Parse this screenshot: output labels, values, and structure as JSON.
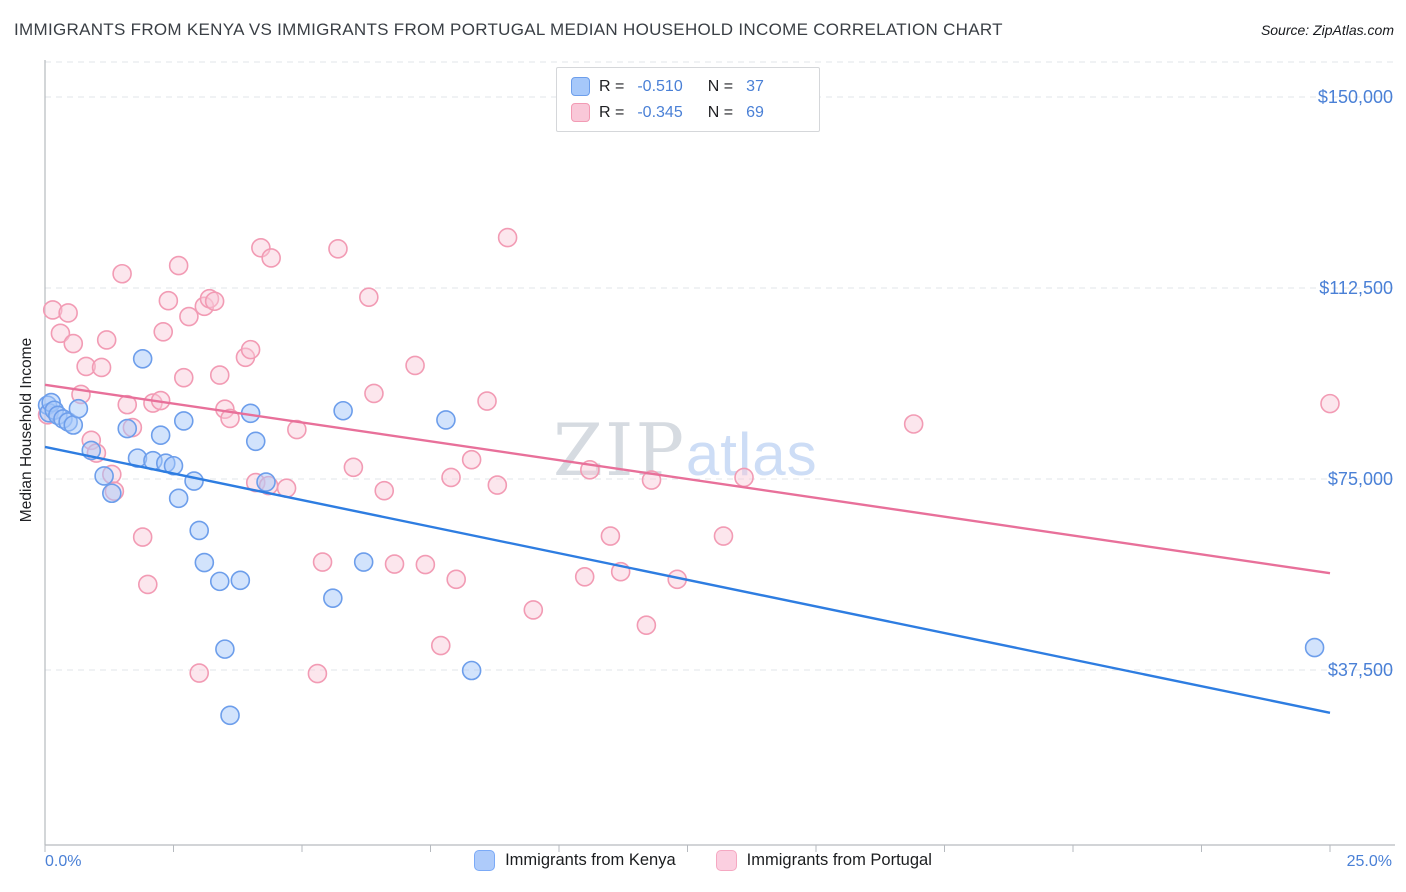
{
  "header": {
    "source": "Source: ZipAtlas.com"
  },
  "legend_box": {
    "rows": [
      {
        "series": "kenya",
        "r_label": "R =",
        "r_value": "-0.510",
        "n_label": "N =",
        "n_value": "37"
      },
      {
        "series": "portugal",
        "r_label": "R =",
        "r_value": "-0.345",
        "n_label": "N =",
        "n_value": "69"
      }
    ]
  },
  "watermark": {
    "zip": "ZIP",
    "atlas": "atlas"
  },
  "chart_data": {
    "type": "scatter",
    "title": "IMMIGRANTS FROM KENYA VS IMMIGRANTS FROM PORTUGAL MEDIAN HOUSEHOLD INCOME CORRELATION CHART",
    "xlabel": "",
    "ylabel": "Median Household Income",
    "grid": "dashed-horizontal",
    "legend_position": "top-center",
    "x_axis": {
      "min_pct": 0,
      "max_pct": 25,
      "tick_step_pct": 2.5,
      "min_label": "0.0%",
      "max_label": "25.0%"
    },
    "y_axis": {
      "ticks": [
        {
          "value": 150000,
          "label": "$150,000"
        },
        {
          "value": 112500,
          "label": "$112,500"
        },
        {
          "value": 75000,
          "label": "$75,000"
        },
        {
          "value": 37500,
          "label": "$37,500"
        }
      ],
      "tick_color": "#4a80d6"
    },
    "series": [
      {
        "name": "Immigrants from Kenya",
        "r": -0.51,
        "n": 37,
        "fill": "#a6c8fa",
        "stroke": "#6d9eeb",
        "line_color": "#2e7de1",
        "fill_opacity": 0.5,
        "trend": {
          "x0_pct": 0,
          "y0": 81300,
          "x1_pct": 25,
          "y1": 29100
        },
        "points_pct_income": [
          [
            0.05,
            89500
          ],
          [
            0.08,
            88000
          ],
          [
            0.12,
            90000
          ],
          [
            0.18,
            88500
          ],
          [
            0.25,
            87500
          ],
          [
            0.35,
            86800
          ],
          [
            0.45,
            86200
          ],
          [
            0.55,
            85600
          ],
          [
            0.65,
            88800
          ],
          [
            0.9,
            80600
          ],
          [
            1.15,
            75600
          ],
          [
            1.3,
            72200
          ],
          [
            1.6,
            84900
          ],
          [
            1.8,
            79100
          ],
          [
            1.9,
            98600
          ],
          [
            2.1,
            78600
          ],
          [
            2.25,
            83600
          ],
          [
            2.35,
            78100
          ],
          [
            2.5,
            77600
          ],
          [
            2.6,
            71200
          ],
          [
            2.7,
            86400
          ],
          [
            2.9,
            74600
          ],
          [
            3.0,
            64900
          ],
          [
            3.1,
            58600
          ],
          [
            3.4,
            54900
          ],
          [
            3.5,
            41600
          ],
          [
            3.6,
            28600
          ],
          [
            3.8,
            55100
          ],
          [
            4.0,
            87900
          ],
          [
            4.1,
            82400
          ],
          [
            4.3,
            74400
          ],
          [
            5.6,
            51600
          ],
          [
            5.8,
            88400
          ],
          [
            6.2,
            58700
          ],
          [
            7.8,
            86600
          ],
          [
            8.3,
            37400
          ],
          [
            24.7,
            41900
          ]
        ]
      },
      {
        "name": "Immigrants from Portugal",
        "r": -0.345,
        "n": 69,
        "fill": "#f9c8d8",
        "stroke": "#f29bb4",
        "line_color": "#e8709a",
        "fill_opacity": 0.45,
        "trend": {
          "x0_pct": 0,
          "y0": 93500,
          "x1_pct": 25,
          "y1": 56500
        },
        "points_pct_income": [
          [
            0.05,
            87600
          ],
          [
            0.15,
            108200
          ],
          [
            0.3,
            103600
          ],
          [
            0.45,
            107600
          ],
          [
            0.55,
            101600
          ],
          [
            0.7,
            91600
          ],
          [
            0.8,
            97100
          ],
          [
            0.9,
            82600
          ],
          [
            1.0,
            80100
          ],
          [
            1.1,
            96900
          ],
          [
            1.2,
            102300
          ],
          [
            1.3,
            75900
          ],
          [
            1.35,
            72600
          ],
          [
            1.5,
            115300
          ],
          [
            1.6,
            89600
          ],
          [
            1.7,
            85100
          ],
          [
            1.9,
            63600
          ],
          [
            2.0,
            54300
          ],
          [
            2.1,
            89900
          ],
          [
            2.25,
            90400
          ],
          [
            2.3,
            103900
          ],
          [
            2.4,
            110000
          ],
          [
            2.6,
            116900
          ],
          [
            2.7,
            94900
          ],
          [
            2.8,
            106900
          ],
          [
            3.0,
            36900
          ],
          [
            3.1,
            108900
          ],
          [
            3.2,
            110400
          ],
          [
            3.3,
            109900
          ],
          [
            3.4,
            95400
          ],
          [
            3.5,
            88700
          ],
          [
            3.6,
            86900
          ],
          [
            3.9,
            98900
          ],
          [
            4.0,
            100400
          ],
          [
            4.1,
            74300
          ],
          [
            4.2,
            120400
          ],
          [
            4.35,
            73700
          ],
          [
            4.4,
            118400
          ],
          [
            4.7,
            73200
          ],
          [
            4.9,
            84700
          ],
          [
            5.3,
            36800
          ],
          [
            5.4,
            58700
          ],
          [
            5.7,
            120200
          ],
          [
            6.0,
            77300
          ],
          [
            6.3,
            110700
          ],
          [
            6.4,
            91800
          ],
          [
            6.6,
            72700
          ],
          [
            6.8,
            58300
          ],
          [
            7.2,
            97300
          ],
          [
            7.4,
            58200
          ],
          [
            7.7,
            42300
          ],
          [
            7.9,
            75300
          ],
          [
            8.0,
            55300
          ],
          [
            8.3,
            78800
          ],
          [
            8.6,
            90300
          ],
          [
            8.8,
            73800
          ],
          [
            9.0,
            122400
          ],
          [
            9.5,
            49300
          ],
          [
            10.5,
            55800
          ],
          [
            10.6,
            76800
          ],
          [
            11.0,
            63800
          ],
          [
            11.2,
            56800
          ],
          [
            11.7,
            46300
          ],
          [
            11.8,
            74800
          ],
          [
            12.3,
            55300
          ],
          [
            13.2,
            63800
          ],
          [
            13.6,
            75300
          ],
          [
            16.9,
            85800
          ],
          [
            25.0,
            89800
          ]
        ]
      }
    ]
  }
}
